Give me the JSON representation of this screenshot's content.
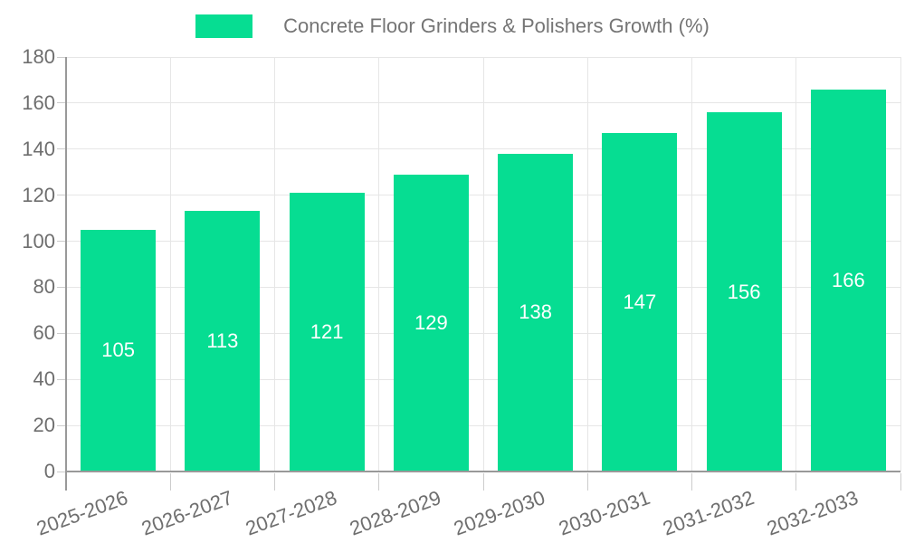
{
  "legend": {
    "label": "Concrete Floor Grinders & Polishers Growth (%)"
  },
  "chart_data": {
    "type": "bar",
    "title": "Concrete Floor Grinders & Polishers Growth (%)",
    "categories": [
      "2025-2026",
      "2026-2027",
      "2027-2028",
      "2028-2029",
      "2029-2030",
      "2030-2031",
      "2031-2032",
      "2032-2033"
    ],
    "values": [
      105,
      113,
      121,
      129,
      138,
      147,
      156,
      166
    ],
    "xlabel": "",
    "ylabel": "",
    "ylim": [
      0,
      180
    ],
    "ytick_step": 20,
    "grid": true,
    "legend_position": "top",
    "colors": {
      "bar": "#06dd92",
      "bar_value_label": "#ffffff",
      "grid": "#e6e6e6",
      "axis": "#999999",
      "tick": "#cccccc",
      "text": "#6e6e6e",
      "legend_text": "#757575"
    }
  }
}
